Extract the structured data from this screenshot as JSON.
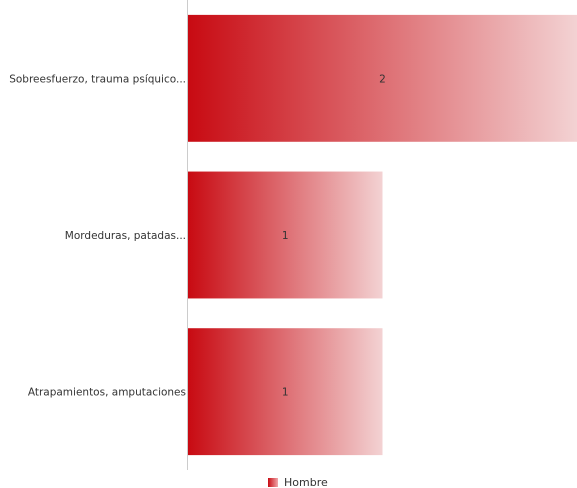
{
  "chart_data": {
    "type": "bar",
    "orientation": "horizontal",
    "categories": [
      "Sobreesfuerzo, trauma psíquico...",
      "Mordeduras, patadas...",
      "Atrapamientos, amputaciones"
    ],
    "series": [
      {
        "name": "Hombre",
        "values": [
          2,
          1,
          1
        ]
      }
    ],
    "data_labels": [
      "2",
      "1",
      "1"
    ],
    "xlim": [
      0,
      2
    ],
    "grid": false,
    "legend_position": "bottom",
    "colors": {
      "bar_start": "#c80a12",
      "bar_end": "#f3d2d3",
      "axis": "#cccccc",
      "text": "#333333",
      "legend_swatch": "#d42a32"
    }
  }
}
